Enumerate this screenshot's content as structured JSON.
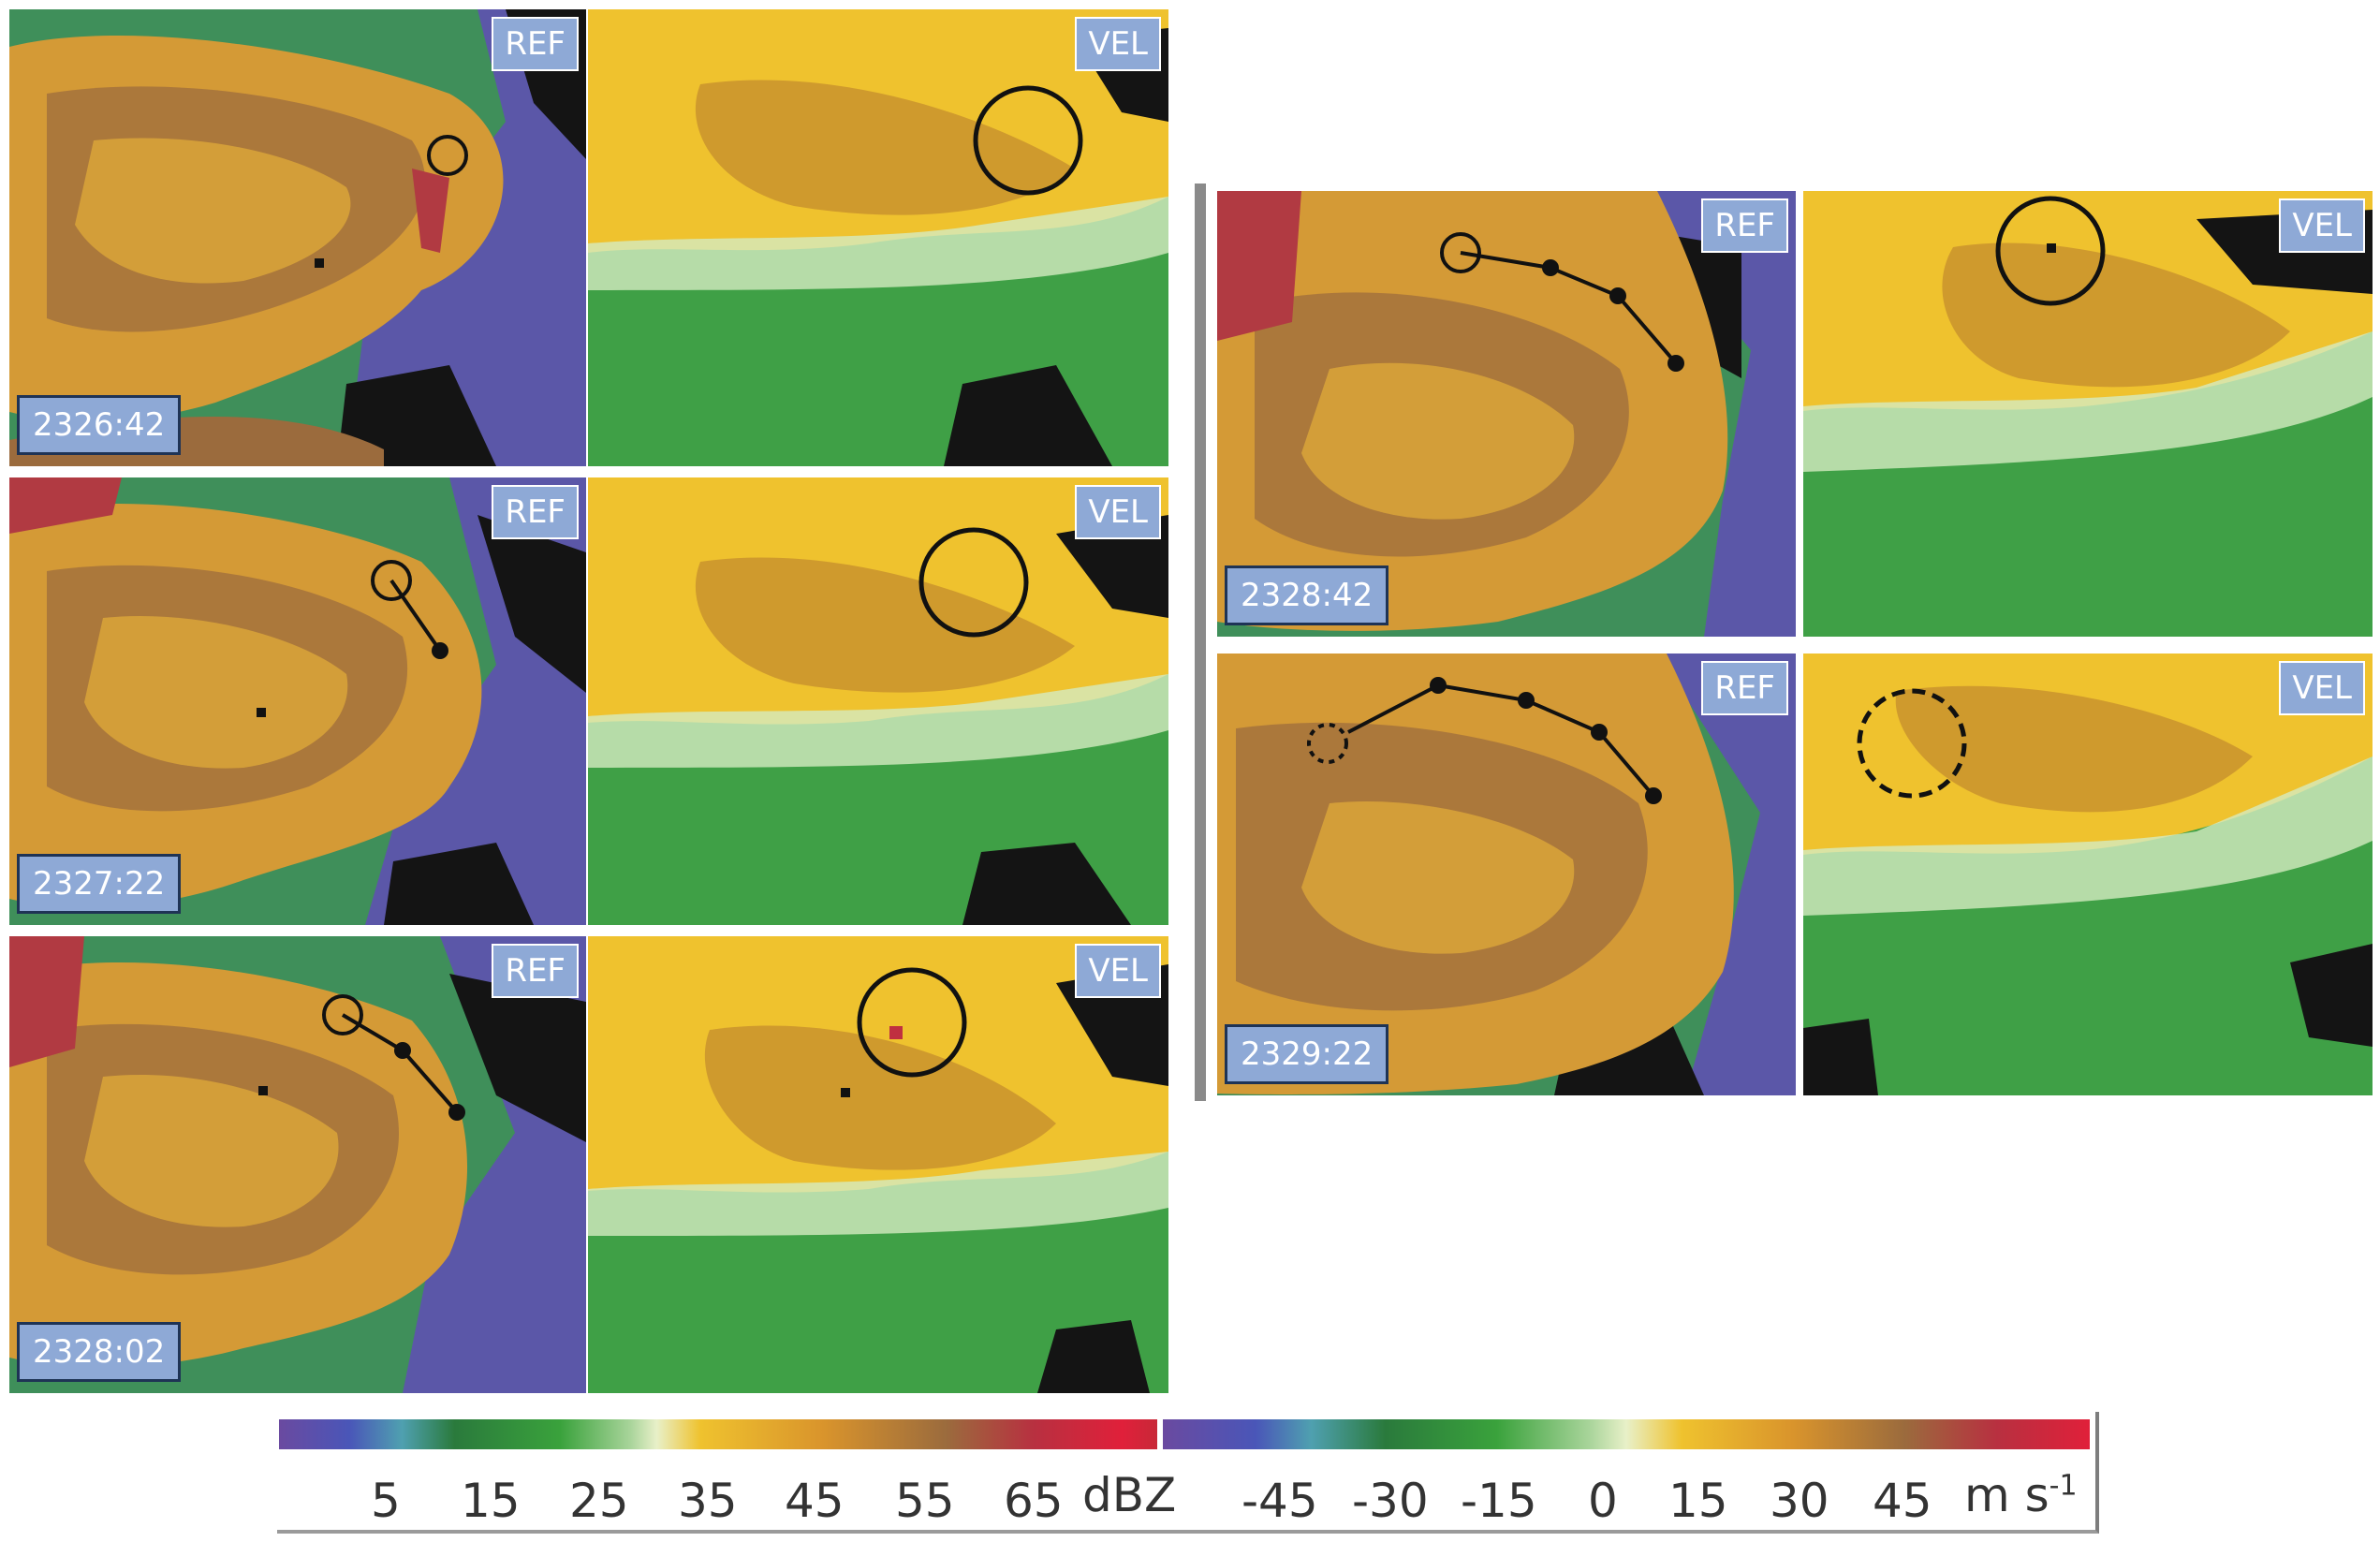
{
  "panels": [
    {
      "id": "p1",
      "type_label": "REF",
      "time_label": "2326:42"
    },
    {
      "id": "p2",
      "type_label": "VEL"
    },
    {
      "id": "p3",
      "type_label": "REF",
      "time_label": "2327:22"
    },
    {
      "id": "p4",
      "type_label": "VEL"
    },
    {
      "id": "p5",
      "type_label": "REF",
      "time_label": "2328:02"
    },
    {
      "id": "p6",
      "type_label": "VEL"
    },
    {
      "id": "p7",
      "type_label": "REF",
      "time_label": "2328:42"
    },
    {
      "id": "p8",
      "type_label": "VEL"
    },
    {
      "id": "p9",
      "type_label": "REF",
      "time_label": "2329:22"
    },
    {
      "id": "p10",
      "type_label": "VEL"
    }
  ],
  "colorbar": {
    "ref_ticks": [
      "5",
      "15",
      "25",
      "35",
      "45",
      "55",
      "65"
    ],
    "ref_unit": "dBZ",
    "vel_ticks": [
      "-45",
      "-30",
      "-15",
      "0",
      "15",
      "30",
      "45"
    ],
    "vel_unit_base": "m s",
    "vel_unit_sup": "-1"
  },
  "colors": {
    "badge": "#8ea9d6",
    "ref_orange": "#d99a2e",
    "ref_brown": "#9a6a3c",
    "vel_yellow": "#efc22e",
    "vel_green": "#3fa046"
  }
}
